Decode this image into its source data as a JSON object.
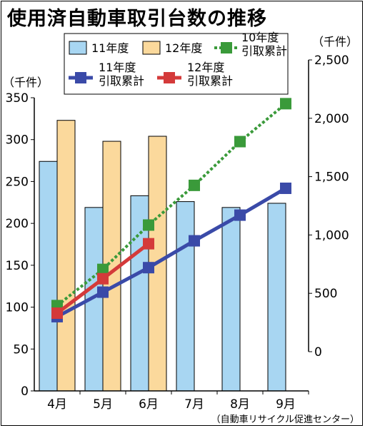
{
  "title": "使用済自動車取引台数の推移",
  "source": "（自動車リサイクル促進センター）",
  "chart_data": {
    "type": "bar",
    "categories": [
      "4月",
      "5月",
      "6月",
      "7月",
      "8月",
      "9月"
    ],
    "left_axis": {
      "unit": "（千件）",
      "ylim": [
        0,
        350
      ],
      "ticks": [
        "0",
        "50",
        "100",
        "150",
        "200",
        "250",
        "300",
        "350"
      ]
    },
    "right_axis": {
      "unit": "（千件）",
      "ylim": [
        0,
        2500
      ],
      "ticks": [
        "0",
        "500",
        "1,000",
        "1,500",
        "2,000",
        "2,500"
      ]
    },
    "series": [
      {
        "name": "11年度",
        "kind": "bar",
        "axis": "left",
        "color": "#a8d6f2",
        "values": [
          274,
          219,
          233,
          226,
          219,
          224
        ]
      },
      {
        "name": "12年度",
        "kind": "bar",
        "axis": "left",
        "color": "#fbd99c",
        "values": [
          323,
          298,
          304,
          null,
          null,
          null
        ]
      },
      {
        "name": "10年度\n引取累計",
        "kind": "line",
        "style": "dotted",
        "axis": "right",
        "color": "#3a9a3a",
        "values": [
          395,
          705,
          1085,
          1425,
          1800,
          2125
        ]
      },
      {
        "name": "11年度\n引取累計",
        "kind": "line",
        "axis": "right",
        "color": "#3a4aa8",
        "values": [
          300,
          510,
          720,
          950,
          1170,
          1400
        ]
      },
      {
        "name": "12年度\n引取累計",
        "kind": "line",
        "axis": "right",
        "color": "#d43a3a",
        "values": [
          330,
          625,
          925,
          null,
          null,
          null
        ]
      }
    ],
    "legend_placement": "top",
    "grid": false
  }
}
